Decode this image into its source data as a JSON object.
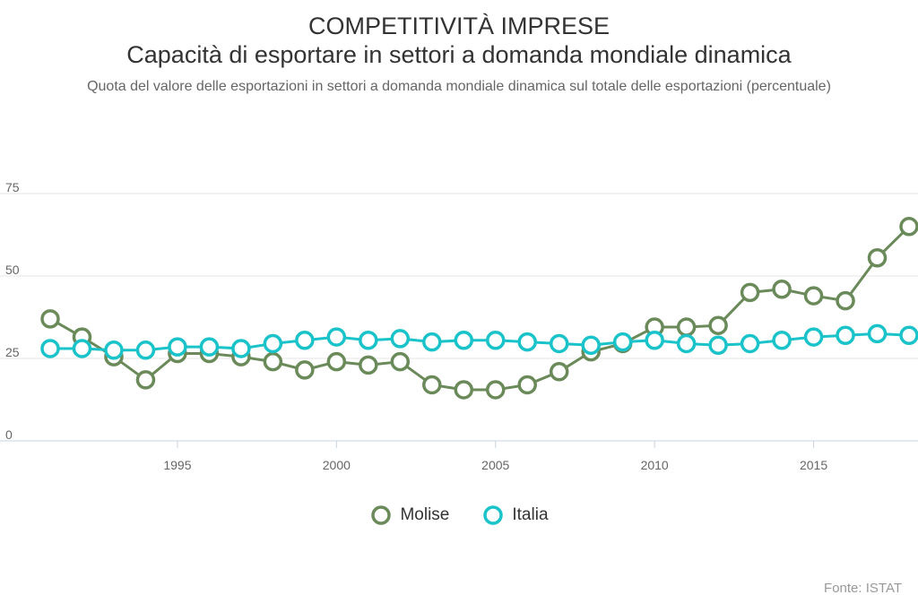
{
  "header": {
    "title": "COMPETITIVITÀ IMPRESE",
    "title_line2": "Capacità di esportare in settori a domanda mondiale dinamica",
    "subtitle": "Quota del valore delle esportazioni in settori a domanda mondiale dinamica sul totale delle esportazioni (percentuale)"
  },
  "source": "Fonte: ISTAT",
  "chart_data": {
    "type": "line",
    "x": [
      1991,
      1992,
      1993,
      1994,
      1995,
      1996,
      1997,
      1998,
      1999,
      2000,
      2001,
      2002,
      2003,
      2004,
      2005,
      2006,
      2007,
      2008,
      2009,
      2010,
      2011,
      2012,
      2013,
      2014,
      2015,
      2016,
      2017,
      2018
    ],
    "xticks": [
      1995,
      2000,
      2005,
      2010,
      2015
    ],
    "yticks": [
      0,
      25,
      50,
      75
    ],
    "ylim": [
      0,
      75
    ],
    "xlim": [
      1991,
      2018
    ],
    "grid": true,
    "legend_position": "bottom",
    "series": [
      {
        "name": "Molise",
        "color": "#6a8a5a",
        "values": [
          37,
          31.5,
          25.5,
          18.5,
          26.5,
          26.5,
          25.5,
          24,
          21.5,
          24,
          23,
          24,
          17,
          15.5,
          15.5,
          17,
          21,
          27,
          29.5,
          34.5,
          34.5,
          35,
          45,
          46,
          44,
          42.5,
          55.5,
          65
        ]
      },
      {
        "name": "Italia",
        "color": "#19c3c9",
        "values": [
          28,
          28,
          27.5,
          27.5,
          28.5,
          28.5,
          28,
          29.5,
          30.5,
          31.5,
          30.5,
          31,
          30,
          30.5,
          30.5,
          30,
          29.5,
          29,
          30,
          30.5,
          29.5,
          29,
          29.5,
          30.5,
          31.5,
          32,
          32.5,
          32
        ]
      }
    ]
  }
}
